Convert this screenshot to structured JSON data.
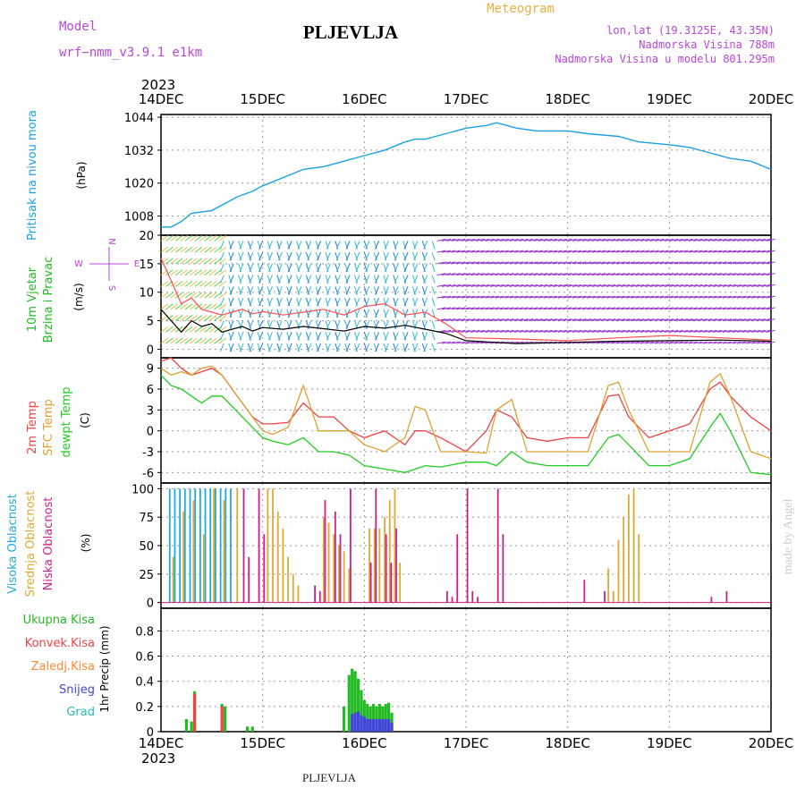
{
  "header": {
    "model_label": "Model",
    "model_name": "wrf−nmm_v3.9.1  e1km",
    "title": "PLJEVLJA",
    "meteogram_label": "Meteogram",
    "coords": "lon,lat (19.3125E, 43.35N)",
    "altitude": "Nadmorska Visina 788m",
    "model_altitude": "Nadmorska Visina u modelu 801.295m",
    "footer_station": "PLJEVLJA",
    "credit": "made by Angel"
  },
  "colors": {
    "pressure": "#1aa0e6",
    "wind_speed": "#000000",
    "wind_gust": "#ff5050",
    "temp_2m": "#ee4444",
    "temp_sfc": "#e0a030",
    "temp_dew": "#22cc22",
    "cloud_high": "#22aadd",
    "cloud_mid": "#ddaa33",
    "cloud_low": "#cc2288",
    "precip_total": "#22bb22",
    "precip_conv": "#ee4444",
    "precip_frz": "#ff8833",
    "precip_snow": "#4444dd",
    "precip_hail": "#22bbbb",
    "label_magenta": "#bb44dd",
    "label_orange": "#e8b040"
  },
  "chart_data": [
    {
      "id": "pressure",
      "type": "line",
      "ylabel_left": "Pritisak na nivou mora",
      "ylabel_unit": "(hPa)",
      "year": "2023",
      "x_ticks": [
        "14DEC",
        "15DEC",
        "16DEC",
        "17DEC",
        "18DEC",
        "19DEC",
        "20DEC"
      ],
      "xlim": [
        0,
        6
      ],
      "ylim": [
        1001,
        1045
      ],
      "y_ticks": [
        1008,
        1020,
        1032,
        1044
      ],
      "x": [
        0,
        0.1,
        0.2,
        0.3,
        0.4,
        0.5,
        0.6,
        0.75,
        0.9,
        1.0,
        1.2,
        1.4,
        1.6,
        1.8,
        2.0,
        2.2,
        2.4,
        2.5,
        2.6,
        2.7,
        2.8,
        3.0,
        3.2,
        3.3,
        3.5,
        3.7,
        4.0,
        4.2,
        4.5,
        4.7,
        5.0,
        5.2,
        5.4,
        5.6,
        5.8,
        6.0
      ],
      "y": [
        1004,
        1004,
        1006,
        1009,
        1009.5,
        1010,
        1012,
        1015,
        1017,
        1019,
        1022,
        1025,
        1026,
        1028,
        1030,
        1032,
        1035,
        1036,
        1036,
        1037,
        1038,
        1040,
        1041,
        1042,
        1040,
        1039,
        1039,
        1038,
        1037,
        1035,
        1034,
        1033,
        1031,
        1029,
        1028,
        1025
      ]
    },
    {
      "id": "wind",
      "type": "line",
      "ylabel_left": [
        "10m Vjetar",
        "Brzina i Pravac"
      ],
      "ylabel_unit": "(m/s)",
      "compass": [
        "N",
        "E",
        "S",
        "W"
      ],
      "xlim": [
        0,
        6
      ],
      "ylim": [
        -1.5,
        20
      ],
      "y_ticks": [
        0,
        5,
        10,
        15,
        20
      ],
      "series": [
        {
          "name": "speed",
          "x": [
            0,
            0.1,
            0.2,
            0.3,
            0.4,
            0.5,
            0.6,
            0.7,
            0.8,
            0.9,
            1.0,
            1.2,
            1.4,
            1.6,
            1.8,
            2.0,
            2.2,
            2.4,
            2.6,
            2.8,
            3.0,
            3.5,
            4.0,
            4.5,
            5.0,
            5.5,
            6.0
          ],
          "y": [
            7,
            5,
            3,
            5,
            4,
            4.5,
            3,
            3.5,
            4,
            3.2,
            3.8,
            3.5,
            4.0,
            3.6,
            3.2,
            4.0,
            3.7,
            4.2,
            3.5,
            2.8,
            1.5,
            1.0,
            1.2,
            1.4,
            1.5,
            1.6,
            1.4
          ]
        },
        {
          "name": "gust",
          "x": [
            0,
            0.1,
            0.2,
            0.3,
            0.4,
            0.5,
            0.6,
            0.7,
            0.8,
            0.9,
            1.0,
            1.2,
            1.4,
            1.6,
            1.8,
            2.0,
            2.2,
            2.4,
            2.6,
            2.8,
            3.0,
            3.5,
            4.0,
            4.5,
            5.0,
            5.5,
            6.0
          ],
          "y": [
            16,
            12,
            8,
            9,
            7,
            6.5,
            6,
            6.5,
            7,
            6.2,
            6.6,
            6.0,
            6.5,
            7.0,
            6.0,
            7.5,
            8.0,
            6.0,
            6.5,
            4.5,
            2.0,
            1.8,
            1.5,
            2.0,
            2.4,
            2.0,
            1.6
          ]
        }
      ]
    },
    {
      "id": "temperature",
      "type": "line",
      "ylabel_left": [
        "2m Temp",
        "SFC Temp",
        "dewpt Temp"
      ],
      "ylabel_unit": "(C)",
      "xlim": [
        0,
        6
      ],
      "ylim": [
        -7.5,
        10.5
      ],
      "y_ticks": [
        -6,
        -3,
        0,
        3,
        6,
        9
      ],
      "series": [
        {
          "name": "2m",
          "x": [
            0,
            0.1,
            0.2,
            0.3,
            0.4,
            0.5,
            0.6,
            0.7,
            0.8,
            0.9,
            1.0,
            1.1,
            1.25,
            1.4,
            1.55,
            1.7,
            1.85,
            2.0,
            2.2,
            2.4,
            2.5,
            2.6,
            2.75,
            3.0,
            3.2,
            3.3,
            3.45,
            3.6,
            3.8,
            4.0,
            4.2,
            4.4,
            4.5,
            4.6,
            4.8,
            5.0,
            5.2,
            5.4,
            5.5,
            5.6,
            5.8,
            6.0
          ],
          "y": [
            10,
            10.5,
            9,
            8,
            8.5,
            9,
            8,
            6,
            4,
            2,
            1,
            1,
            1.2,
            4,
            2,
            2,
            0,
            -1,
            0,
            -2,
            0,
            0,
            -1,
            -3,
            0,
            3,
            2,
            -1,
            -1.5,
            -1,
            -1,
            5,
            5.2,
            2,
            -1,
            0,
            1,
            6,
            7,
            5,
            2,
            0
          ]
        },
        {
          "name": "sfc",
          "x": [
            0,
            0.1,
            0.2,
            0.3,
            0.4,
            0.5,
            0.6,
            0.7,
            0.8,
            0.9,
            1.0,
            1.1,
            1.25,
            1.4,
            1.55,
            1.7,
            1.85,
            2.0,
            2.2,
            2.4,
            2.5,
            2.6,
            2.75,
            3.0,
            3.2,
            3.3,
            3.45,
            3.6,
            3.8,
            4.0,
            4.2,
            4.4,
            4.5,
            4.6,
            4.8,
            5.0,
            5.2,
            5.4,
            5.5,
            5.6,
            5.8,
            6.0
          ],
          "y": [
            9,
            8,
            8.5,
            8,
            9,
            9.3,
            8,
            6,
            4,
            2,
            0,
            -0.5,
            0.5,
            6.5,
            0,
            0,
            0,
            -2,
            -3,
            -1,
            3.5,
            3,
            -3,
            -3,
            -3.2,
            3,
            4.5,
            -3,
            -3,
            -3,
            -3,
            6.5,
            7,
            3,
            -3,
            -3,
            -3,
            7,
            8.2,
            5,
            -3,
            -4
          ]
        },
        {
          "name": "dewpt",
          "x": [
            0,
            0.1,
            0.2,
            0.3,
            0.4,
            0.5,
            0.6,
            0.7,
            0.8,
            0.9,
            1.0,
            1.1,
            1.25,
            1.4,
            1.55,
            1.7,
            1.85,
            2.0,
            2.2,
            2.4,
            2.5,
            2.6,
            2.75,
            3.0,
            3.2,
            3.3,
            3.45,
            3.6,
            3.8,
            4.0,
            4.2,
            4.4,
            4.5,
            4.6,
            4.8,
            5.0,
            5.2,
            5.4,
            5.5,
            5.6,
            5.8,
            6.0
          ],
          "y": [
            8,
            6.5,
            6,
            5,
            4,
            5,
            5,
            3.5,
            2,
            0.5,
            -1,
            -1.5,
            -2,
            -1,
            -3,
            -3,
            -3.5,
            -5,
            -5.5,
            -6,
            -5.5,
            -5,
            -5.2,
            -4.5,
            -4.5,
            -5,
            -3,
            -4.5,
            -5,
            -5,
            -5,
            -1,
            -0.5,
            -2,
            -5,
            -5,
            -4,
            0.5,
            2.5,
            0,
            -6,
            -6.3
          ]
        }
      ]
    },
    {
      "id": "clouds",
      "type": "bar",
      "ylabel_left": [
        "Visoka Oblacnost",
        "Srednja Oblacnost",
        "Niska Oblacnost"
      ],
      "ylabel_unit": "(%)",
      "xlim": [
        0,
        6
      ],
      "ylim": [
        -5,
        105
      ],
      "y_ticks": [
        0,
        25,
        50,
        75,
        100
      ],
      "series": [
        {
          "name": "high",
          "x": [
            0.1,
            0.15,
            0.2,
            0.25,
            0.3,
            0.35,
            0.4,
            0.45,
            0.5,
            0.55,
            0.6,
            0.65,
            0.7
          ],
          "y": [
            100,
            100,
            100,
            100,
            100,
            100,
            100,
            100,
            100,
            100,
            100,
            100,
            100
          ]
        },
        {
          "name": "mid",
          "x": [
            0.12,
            0.22,
            0.32,
            0.42,
            0.52,
            0.62,
            0.75,
            1.05,
            1.1,
            1.15,
            1.2,
            1.25,
            1.3,
            1.35,
            1.6,
            1.65,
            1.7,
            1.75,
            1.8,
            1.85,
            2.05,
            2.1,
            2.15,
            2.2,
            2.25,
            2.3,
            2.35,
            4.4,
            4.45,
            4.5,
            4.55,
            4.6,
            4.65,
            4.7
          ],
          "y": [
            40,
            80,
            90,
            60,
            100,
            90,
            100,
            100,
            100,
            80,
            65,
            40,
            25,
            15,
            75,
            70,
            60,
            50,
            45,
            30,
            65,
            65,
            65,
            75,
            90,
            100,
            35,
            30,
            10,
            55,
            75,
            95,
            100,
            60
          ]
        },
        {
          "name": "low",
          "x": [
            0.8,
            0.85,
            0.95,
            1.0,
            1.5,
            1.55,
            1.6,
            1.7,
            1.75,
            1.85,
            2.05,
            2.1,
            2.2,
            2.25,
            2.3,
            2.8,
            2.85,
            2.9,
            3.0,
            3.05,
            3.1,
            3.3,
            3.35,
            4.15,
            4.35,
            5.4,
            5.55
          ],
          "y": [
            100,
            40,
            100,
            60,
            15,
            10,
            90,
            80,
            60,
            100,
            35,
            100,
            60,
            35,
            65,
            10,
            5,
            60,
            100,
            10,
            5,
            100,
            60,
            20,
            10,
            5,
            10
          ]
        }
      ]
    },
    {
      "id": "precip",
      "type": "bar",
      "ylabel_left": [
        "Ukupna  Kisa",
        "Konvek.Kisa",
        "Zaledj.Kisa",
        "Snijeg",
        "Grad"
      ],
      "ylabel_unit": "1hr Precip (mm)",
      "xlim": [
        0,
        6
      ],
      "ylim": [
        0,
        0.98
      ],
      "y_ticks": [
        0.0,
        0.2,
        0.4,
        0.6,
        0.8
      ],
      "x_ticks": [
        "14DEC",
        "15DEC",
        "16DEC",
        "17DEC",
        "18DEC",
        "19DEC",
        "20DEC"
      ],
      "year": "2023",
      "series": [
        {
          "name": "total",
          "x": [
            0.25,
            0.3,
            0.33,
            0.6,
            0.63,
            0.85,
            0.9,
            1.8,
            1.85,
            1.88,
            1.91,
            1.94,
            1.97,
            2.0,
            2.03,
            2.06,
            2.09,
            2.12,
            2.15,
            2.18,
            2.21,
            2.24,
            2.27
          ],
          "y": [
            0.1,
            0.08,
            0.32,
            0.22,
            0.2,
            0.04,
            0.04,
            0.2,
            0.45,
            0.5,
            0.48,
            0.42,
            0.33,
            0.25,
            0.22,
            0.2,
            0.22,
            0.2,
            0.22,
            0.2,
            0.22,
            0.23,
            0.15
          ]
        },
        {
          "name": "conv",
          "x": [
            0.33,
            0.6
          ],
          "y": [
            0.3,
            0.2
          ]
        },
        {
          "name": "snow",
          "x": [
            1.88,
            1.91,
            1.94,
            1.97,
            2.0,
            2.03,
            2.06,
            2.09,
            2.12,
            2.15,
            2.18,
            2.21,
            2.24,
            2.27
          ],
          "y": [
            0.14,
            0.15,
            0.16,
            0.13,
            0.12,
            0.1,
            0.1,
            0.1,
            0.1,
            0.1,
            0.1,
            0.1,
            0.1,
            0.07
          ]
        }
      ]
    }
  ]
}
